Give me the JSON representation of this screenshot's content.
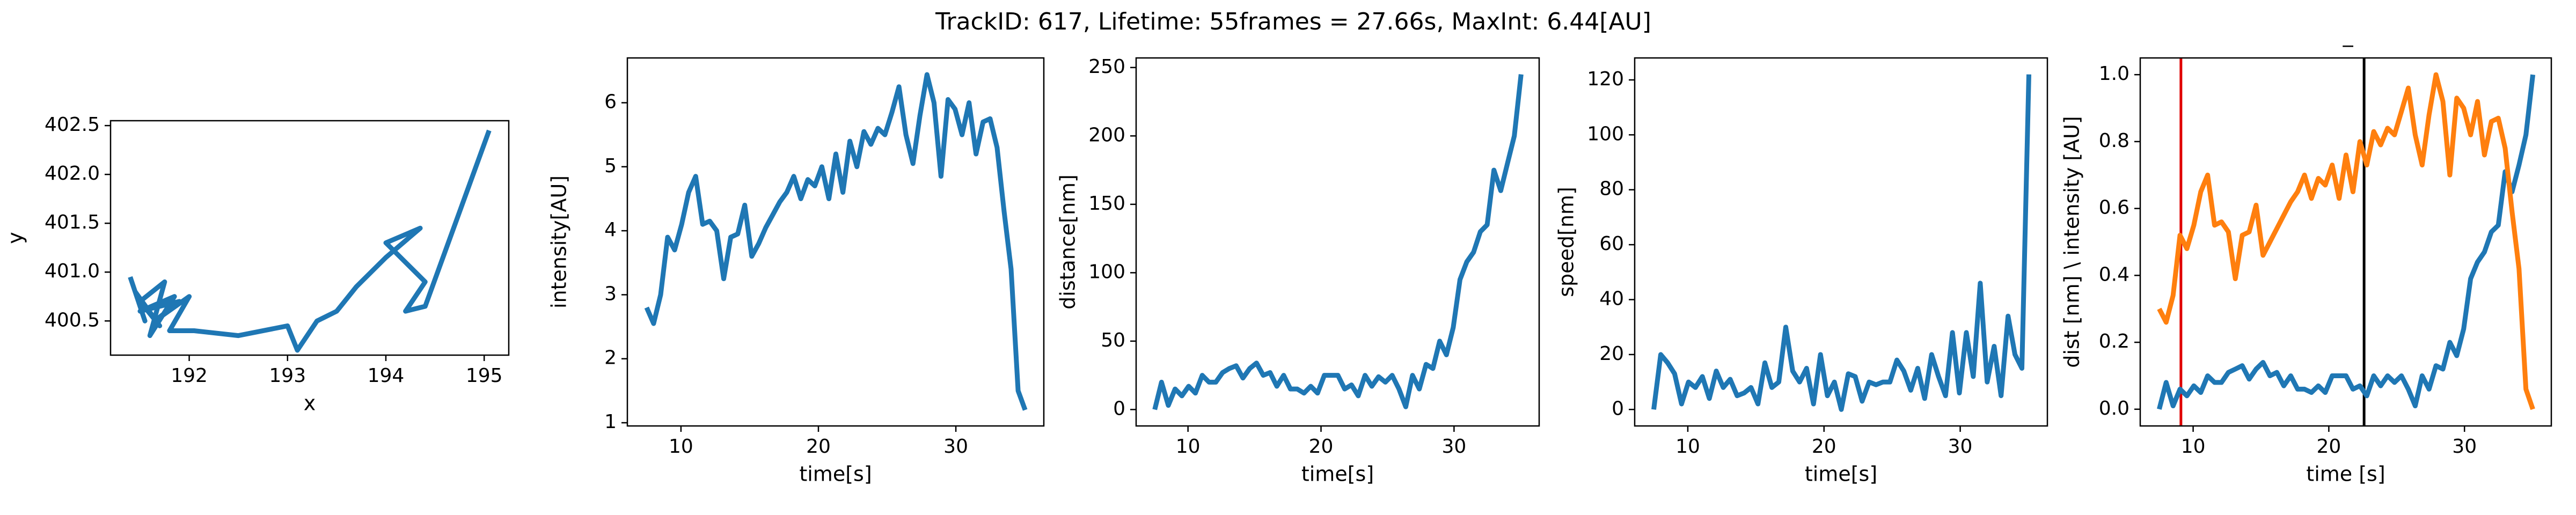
{
  "title": "TrackID: 617, Lifetime: 55frames = 27.66s, MaxInt: 6.44[AU]",
  "chart_data": [
    {
      "type": "line",
      "xlabel": "x",
      "ylabel": "y",
      "color": "#1f77b4",
      "x": [
        191.4,
        191.55,
        191.45,
        191.7,
        191.5,
        191.75,
        191.6,
        191.85,
        191.5,
        191.9,
        191.65,
        192.0,
        191.8,
        192.05,
        192.5,
        193.0,
        193.1,
        193.3,
        193.5,
        193.7,
        194.0,
        194.35,
        194.0,
        194.4,
        194.2,
        194.4,
        195.05
      ],
      "values": [
        400.95,
        400.5,
        400.8,
        400.45,
        400.7,
        400.9,
        400.35,
        400.75,
        400.6,
        400.7,
        400.5,
        400.75,
        400.4,
        400.4,
        400.35,
        400.45,
        400.2,
        400.5,
        400.6,
        400.85,
        401.15,
        401.45,
        401.3,
        400.9,
        400.6,
        400.65,
        402.45
      ],
      "xlim": [
        191.2,
        195.25
      ],
      "xticks": [
        192,
        193,
        194,
        195
      ],
      "ylim": [
        400.15,
        402.55
      ],
      "yticks": [
        400.5,
        {
          "value": 401.0,
          "label": "401.0"
        },
        401.5,
        {
          "value": 402.0,
          "label": "402.0"
        },
        402.5
      ]
    },
    {
      "type": "line",
      "xlabel": "time[s]",
      "ylabel": "intensity[AU]",
      "color": "#1f77b4",
      "x": [
        7.5,
        8.01,
        8.52,
        9.03,
        9.54,
        10.05,
        10.56,
        11.07,
        11.58,
        12.09,
        12.6,
        13.11,
        13.62,
        14.13,
        14.64,
        15.15,
        15.66,
        16.17,
        16.68,
        17.19,
        17.7,
        18.21,
        18.72,
        19.23,
        19.74,
        20.25,
        20.76,
        21.27,
        21.78,
        22.29,
        22.8,
        23.31,
        23.82,
        24.33,
        24.84,
        25.35,
        25.86,
        26.37,
        26.88,
        27.39,
        27.9,
        28.41,
        28.92,
        29.43,
        29.94,
        30.45,
        30.96,
        31.47,
        31.98,
        32.49,
        33.0,
        33.51,
        34.02,
        34.53,
        35.04
      ],
      "values": [
        2.8,
        2.55,
        3.0,
        3.9,
        3.7,
        4.1,
        4.6,
        4.85,
        4.1,
        4.15,
        4.0,
        3.25,
        3.9,
        3.95,
        4.4,
        3.6,
        3.8,
        4.05,
        4.25,
        4.45,
        4.6,
        4.85,
        4.5,
        4.8,
        4.7,
        5.0,
        4.5,
        5.2,
        4.6,
        5.4,
        5.0,
        5.55,
        5.35,
        5.6,
        5.5,
        5.85,
        6.25,
        5.5,
        5.05,
        5.8,
        6.44,
        6.0,
        4.85,
        6.05,
        5.9,
        5.5,
        6.0,
        5.2,
        5.7,
        5.75,
        5.3,
        4.3,
        3.4,
        1.5,
        1.2
      ],
      "xlim": [
        6.1,
        36.4
      ],
      "xticks": [
        10,
        20,
        30
      ],
      "ylim": [
        0.95,
        6.7
      ],
      "yticks": [
        1,
        2,
        3,
        4,
        5,
        6
      ]
    },
    {
      "type": "line",
      "xlabel": "time[s]",
      "ylabel": "distance[nm]",
      "color": "#1f77b4",
      "x": [
        7.5,
        8.01,
        8.52,
        9.03,
        9.54,
        10.05,
        10.56,
        11.07,
        11.58,
        12.09,
        12.6,
        13.11,
        13.62,
        14.13,
        14.64,
        15.15,
        15.66,
        16.17,
        16.68,
        17.19,
        17.7,
        18.21,
        18.72,
        19.23,
        19.74,
        20.25,
        20.76,
        21.27,
        21.78,
        22.29,
        22.8,
        23.31,
        23.82,
        24.33,
        24.84,
        25.35,
        25.86,
        26.37,
        26.88,
        27.39,
        27.9,
        28.41,
        28.92,
        29.43,
        29.94,
        30.45,
        30.96,
        31.47,
        31.98,
        32.49,
        33.0,
        33.51,
        34.02,
        34.53,
        35.04
      ],
      "values": [
        0,
        20,
        3,
        15,
        10,
        17,
        12,
        25,
        20,
        20,
        27,
        30,
        32,
        23,
        30,
        34,
        25,
        27,
        17,
        25,
        15,
        15,
        12,
        17,
        12,
        25,
        25,
        25,
        15,
        18,
        10,
        25,
        17,
        24,
        20,
        25,
        15,
        2,
        25,
        15,
        33,
        30,
        50,
        40,
        60,
        95,
        108,
        115,
        130,
        135,
        175,
        160,
        180,
        200,
        245
      ],
      "xlim": [
        6.1,
        36.4
      ],
      "xticks": [
        10,
        20,
        30
      ],
      "ylim": [
        -12,
        257
      ],
      "yticks": [
        0,
        50,
        100,
        150,
        200,
        250
      ]
    },
    {
      "type": "line",
      "xlabel": "time[s]",
      "ylabel": "speed[nm]",
      "color": "#1f77b4",
      "x": [
        7.5,
        8.01,
        8.52,
        9.03,
        9.54,
        10.05,
        10.56,
        11.07,
        11.58,
        12.09,
        12.6,
        13.11,
        13.62,
        14.13,
        14.64,
        15.15,
        15.66,
        16.17,
        16.68,
        17.19,
        17.7,
        18.21,
        18.72,
        19.23,
        19.74,
        20.25,
        20.76,
        21.27,
        21.78,
        22.29,
        22.8,
        23.31,
        23.82,
        24.33,
        24.84,
        25.35,
        25.86,
        26.37,
        26.88,
        27.39,
        27.9,
        28.41,
        28.92,
        29.43,
        29.94,
        30.45,
        30.96,
        31.47,
        31.98,
        32.49,
        33.0,
        33.51,
        34.02,
        34.53,
        35.04
      ],
      "values": [
        0,
        20,
        17,
        13,
        2,
        10,
        8,
        12,
        4,
        14,
        8,
        11,
        5,
        6,
        8,
        2,
        17,
        8,
        10,
        30,
        14,
        10,
        15,
        2,
        20,
        5,
        10,
        0,
        13,
        12,
        3,
        10,
        9,
        10,
        10,
        18,
        14,
        7,
        15,
        4,
        20,
        12,
        5,
        28,
        6,
        28,
        12,
        46,
        10,
        23,
        5,
        34,
        20,
        15,
        122
      ],
      "xlim": [
        6.1,
        36.4
      ],
      "xticks": [
        10,
        20,
        30
      ],
      "ylim": [
        -6,
        128
      ],
      "yticks": [
        0,
        20,
        40,
        60,
        80,
        100,
        120
      ]
    },
    {
      "type": "line",
      "xlabel": "time [s]",
      "ylabel": "dist [nm] \\ intensity [AU]",
      "annotation": "_",
      "x": [
        7.5,
        8.01,
        8.52,
        9.03,
        9.54,
        10.05,
        10.56,
        11.07,
        11.58,
        12.09,
        12.6,
        13.11,
        13.62,
        14.13,
        14.64,
        15.15,
        15.66,
        16.17,
        16.68,
        17.19,
        17.7,
        18.21,
        18.72,
        19.23,
        19.74,
        20.25,
        20.76,
        21.27,
        21.78,
        22.29,
        22.8,
        23.31,
        23.82,
        24.33,
        24.84,
        25.35,
        25.86,
        26.37,
        26.88,
        27.39,
        27.9,
        28.41,
        28.92,
        29.43,
        29.94,
        30.45,
        30.96,
        31.47,
        31.98,
        32.49,
        33.0,
        33.51,
        34.02,
        34.53,
        35.04
      ],
      "series": [
        {
          "color": "#1f77b4",
          "values": [
            0,
            0.08,
            0.01,
            0.06,
            0.04,
            0.07,
            0.05,
            0.1,
            0.08,
            0.08,
            0.11,
            0.12,
            0.13,
            0.09,
            0.12,
            0.14,
            0.1,
            0.11,
            0.07,
            0.1,
            0.06,
            0.06,
            0.05,
            0.07,
            0.05,
            0.1,
            0.1,
            0.1,
            0.06,
            0.07,
            0.04,
            0.1,
            0.07,
            0.1,
            0.08,
            0.1,
            0.06,
            0.01,
            0.1,
            0.06,
            0.13,
            0.12,
            0.2,
            0.16,
            0.24,
            0.39,
            0.44,
            0.47,
            0.53,
            0.55,
            0.71,
            0.65,
            0.73,
            0.82,
            1.0
          ]
        },
        {
          "color": "#ff7f0e",
          "values": [
            0.3,
            0.26,
            0.34,
            0.52,
            0.48,
            0.55,
            0.65,
            0.7,
            0.55,
            0.56,
            0.53,
            0.39,
            0.52,
            0.53,
            0.61,
            0.46,
            0.5,
            0.54,
            0.58,
            0.62,
            0.65,
            0.7,
            0.63,
            0.69,
            0.67,
            0.73,
            0.63,
            0.76,
            0.65,
            0.8,
            0.73,
            0.83,
            0.79,
            0.84,
            0.82,
            0.89,
            0.96,
            0.82,
            0.73,
            0.88,
            1.0,
            0.92,
            0.7,
            0.93,
            0.9,
            0.82,
            0.92,
            0.76,
            0.86,
            0.87,
            0.78,
            0.59,
            0.42,
            0.06,
            0.0
          ]
        }
      ],
      "vlines": [
        {
          "x": 9.1,
          "color": "#e00000"
        },
        {
          "x": 22.6,
          "color": "#000000"
        }
      ],
      "xlim": [
        6.1,
        36.4
      ],
      "xticks": [
        10,
        20,
        30
      ],
      "ylim": [
        -0.05,
        1.05
      ],
      "yticks": [
        {
          "value": 0,
          "label": "0.0"
        },
        0.2,
        0.4,
        0.6,
        0.8,
        {
          "value": 1,
          "label": "1.0"
        }
      ]
    }
  ]
}
